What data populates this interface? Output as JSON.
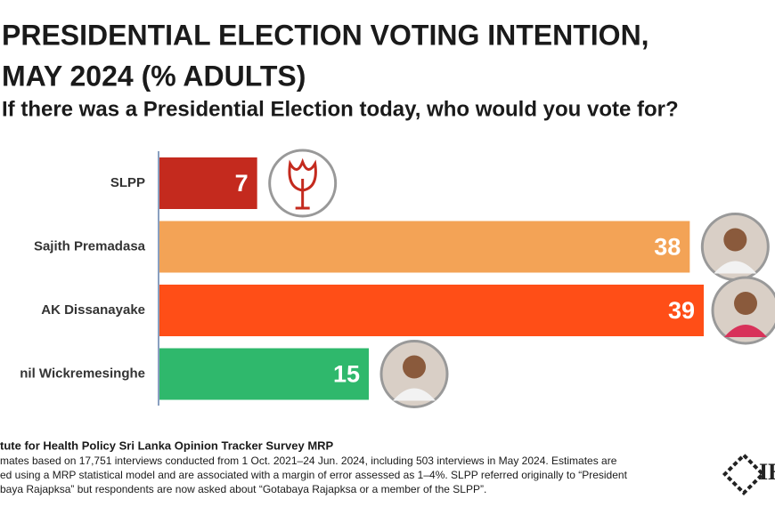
{
  "chart_data": {
    "type": "hbar",
    "title": [
      "PRESIDENTIAL ELECTION VOTING INTENTION,",
      "MAY 2024 (% ADULTS)"
    ],
    "subtitle": "If there was a Presidential Election today, who would you vote for?",
    "categories": [
      "SLPP",
      "Sajith Premadasa",
      "AK Dissanayake",
      "nil Wickremesinghe"
    ],
    "values": [
      7,
      38,
      39,
      15
    ],
    "colors": [
      "#c42a1e",
      "#f3a356",
      "#ff4e17",
      "#2fb86c"
    ],
    "source": "tute for Health Policy Sri Lanka Opinion Tracker Survey MRP",
    "notes": [
      "mates based on 17,751 interviews conducted from 1 Oct. 2021–24 Jun. 2024, including 503 interviews in May 2024. Estimates are",
      "ed using a MRP statistical model and are associated with a margin of error assessed as 1–4%. SLPP referred originally to “President",
      "baya Rajapksa” but respondents are now asked about “Gotabaya Rajapksa or a member of the SLPP”."
    ],
    "logo_text": "IH"
  }
}
